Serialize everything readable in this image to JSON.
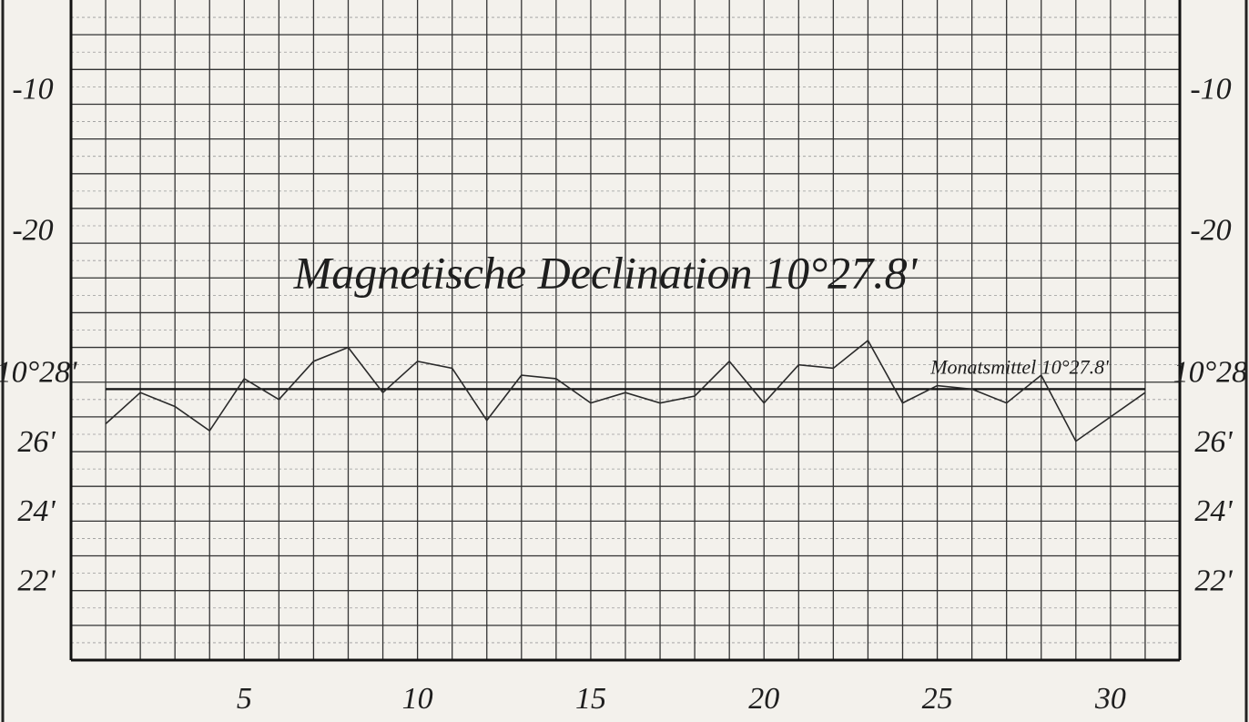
{
  "chart_data": {
    "type": "line",
    "title": "Magnetische Declination 10°27.8'",
    "x": [
      1,
      2,
      3,
      4,
      5,
      6,
      7,
      8,
      9,
      10,
      11,
      12,
      13,
      14,
      15,
      16,
      17,
      18,
      19,
      20,
      21,
      22,
      23,
      24,
      25,
      26,
      27,
      28,
      29,
      30,
      31
    ],
    "series": [
      {
        "name": "Magnetische Declination",
        "color": "#2a2a2a",
        "values": [
          26.8,
          27.7,
          27.3,
          26.6,
          28.1,
          27.5,
          28.6,
          29.0,
          27.7,
          28.6,
          28.4,
          26.9,
          28.2,
          28.1,
          27.4,
          27.7,
          27.4,
          27.6,
          28.6,
          27.4,
          28.5,
          28.4,
          29.2,
          27.4,
          27.9,
          27.8,
          27.4,
          28.2,
          26.3,
          27.0,
          27.7
        ]
      }
    ],
    "mean": {
      "label": "Monatsmittel 10°27.8'",
      "value": 27.8
    },
    "xlim": [
      0,
      32
    ],
    "xticks": [
      5,
      10,
      15,
      20,
      25,
      30
    ],
    "ylim": [
      20,
      39
    ],
    "yticks": [
      {
        "value": 28,
        "label": "10°28'"
      },
      {
        "value": 26,
        "label": "26'"
      },
      {
        "value": 24,
        "label": "24'"
      },
      {
        "value": 22,
        "label": "22'"
      }
    ],
    "y2lim": [
      -50.3,
      -3.5
    ],
    "y2ticks": [
      -10,
      -20
    ],
    "grid": true
  }
}
